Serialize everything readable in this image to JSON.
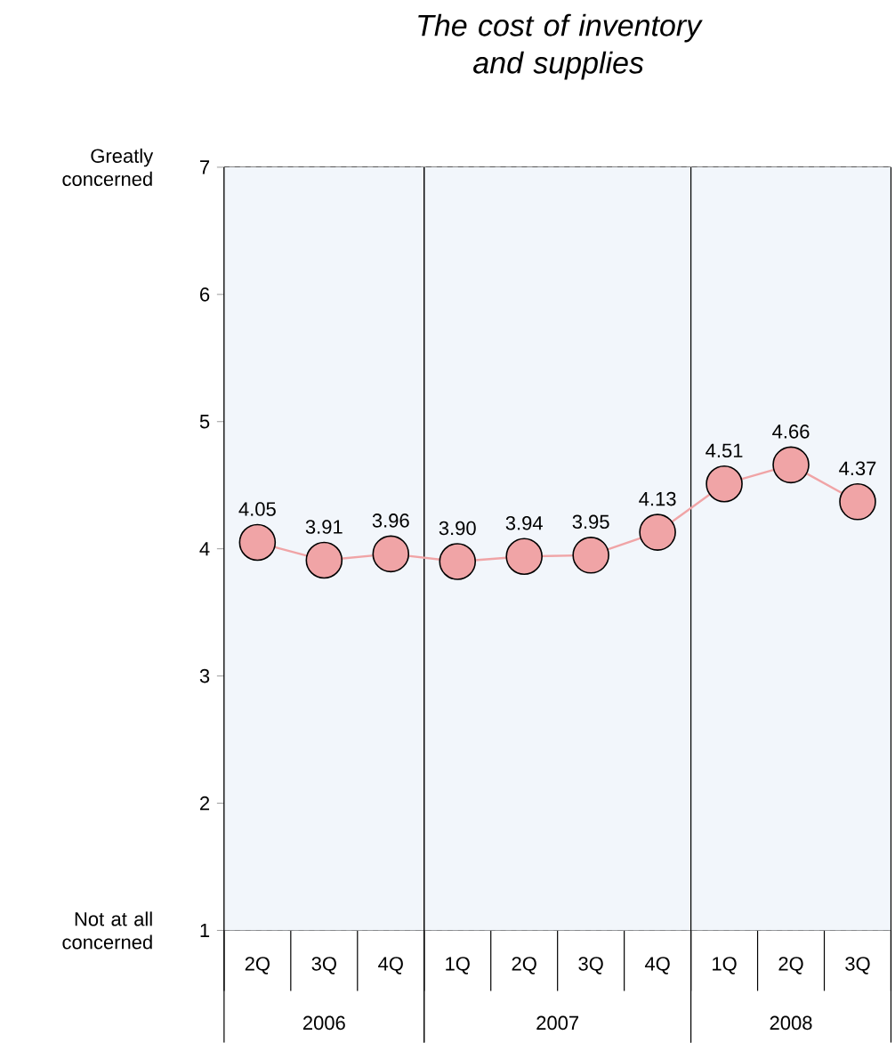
{
  "chart_data": {
    "type": "line",
    "title": "The cost of inventory and supplies",
    "categories": [
      "2Q",
      "3Q",
      "4Q",
      "1Q",
      "2Q",
      "3Q",
      "4Q",
      "1Q",
      "2Q",
      "3Q"
    ],
    "values": [
      4.05,
      3.91,
      3.96,
      3.9,
      3.94,
      3.95,
      4.13,
      4.51,
      4.66,
      4.37
    ],
    "value_labels": [
      "4.05",
      "3.91",
      "3.96",
      "3.90",
      "3.94",
      "3.95",
      "4.13",
      "4.51",
      "4.66",
      "4.37"
    ],
    "color": "#f0a4a6",
    "marker": "circle",
    "line_style": "solid",
    "ylim": [
      1,
      7
    ],
    "yticks": [
      1,
      2,
      3,
      4,
      5,
      6,
      7
    ],
    "grid": "y",
    "annotations": [
      "Greatly concerned",
      "Not at all concerned",
      "2006",
      "2007",
      "2008"
    ]
  }
}
